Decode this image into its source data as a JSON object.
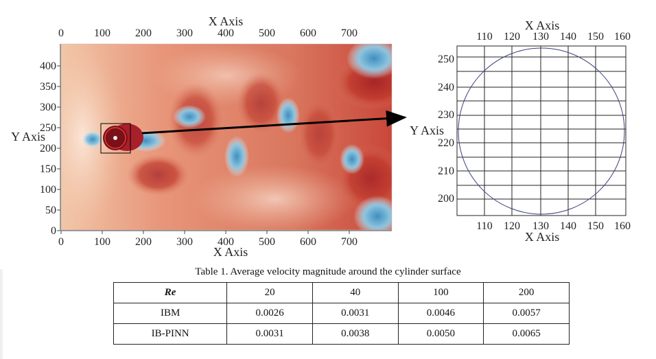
{
  "figure": {
    "left_plot": {
      "x_axis_title": "X Axis",
      "y_axis_title": "Y Axis",
      "x_ticks": [
        "0",
        "100",
        "200",
        "300",
        "400",
        "500",
        "600",
        "700"
      ],
      "y_ticks": [
        "0",
        "50",
        "100",
        "150",
        "200",
        "250",
        "300",
        "350",
        "400"
      ]
    },
    "right_plot": {
      "x_axis_title": "X Axis",
      "y_axis_title": "Y Axis",
      "x_ticks": [
        "110",
        "120",
        "130",
        "140",
        "150",
        "160"
      ],
      "y_ticks": [
        "200",
        "210",
        "220",
        "230",
        "240",
        "250"
      ]
    }
  },
  "table": {
    "caption": "Table 1. Average velocity magnitude around the cylinder surface",
    "header": [
      "Re",
      "20",
      "40",
      "100",
      "200"
    ],
    "rows": [
      [
        "IBM",
        "0.0026",
        "0.0031",
        "0.0046",
        "0.0057"
      ],
      [
        "IB-PINN",
        "0.0031",
        "0.0038",
        "0.0050",
        "0.0065"
      ]
    ]
  }
}
